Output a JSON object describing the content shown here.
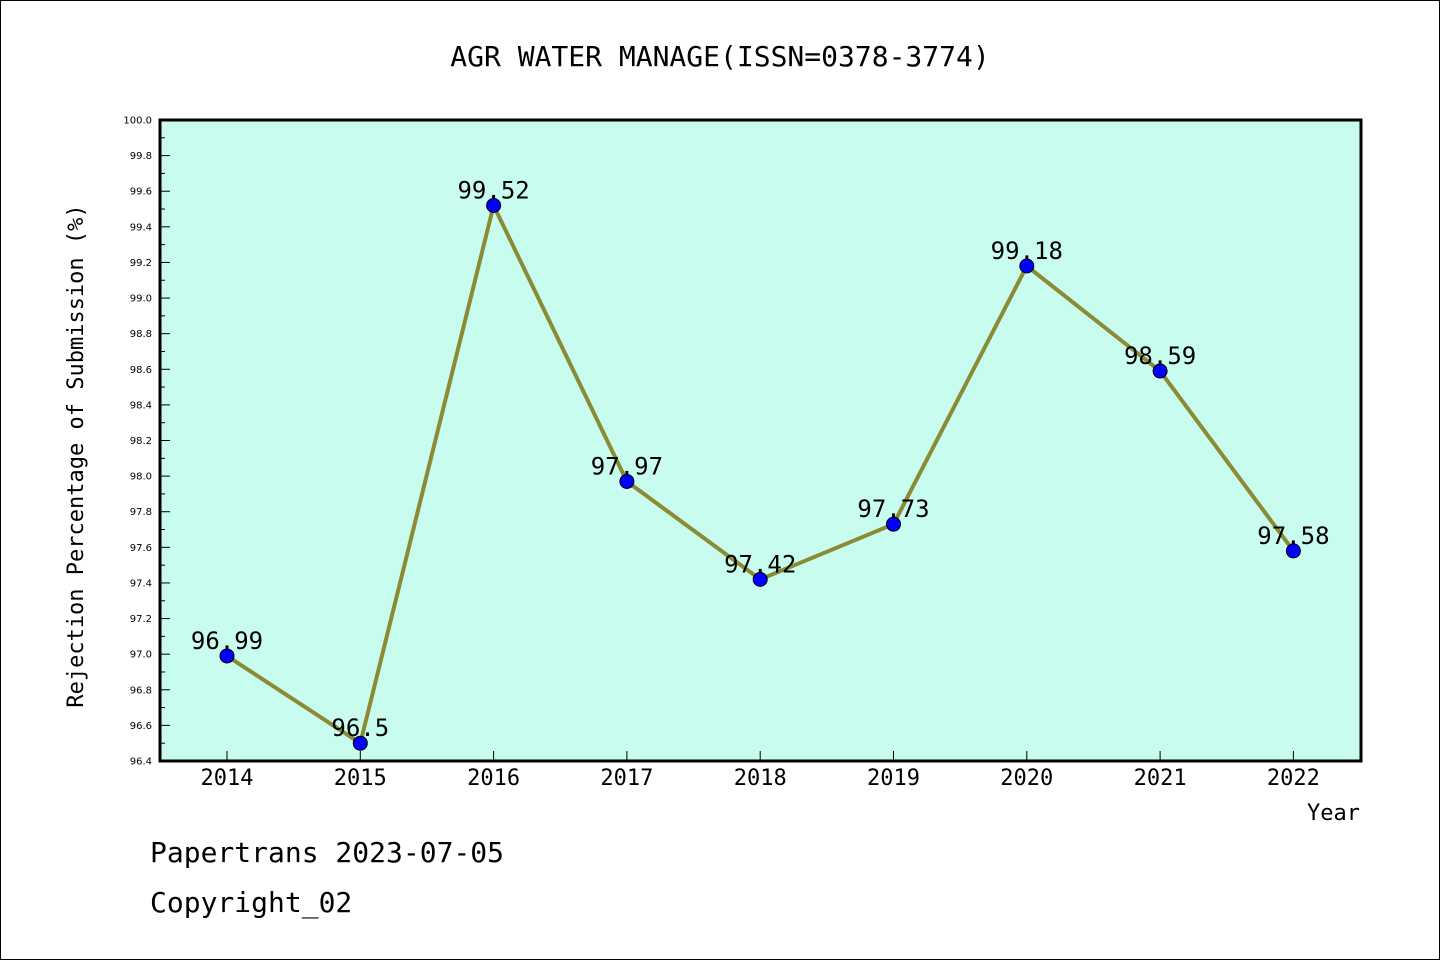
{
  "chart_data": {
    "type": "line",
    "title": "AGR WATER MANAGE(ISSN=0378-3774)",
    "xlabel": "Year",
    "ylabel": "Rejection Percentage of Submission (%)",
    "categories": [
      "2014",
      "2015",
      "2016",
      "2017",
      "2018",
      "2019",
      "2020",
      "2021",
      "2022"
    ],
    "values": [
      96.99,
      96.5,
      99.52,
      97.97,
      97.42,
      97.73,
      99.18,
      98.59,
      97.58
    ],
    "data_labels": [
      "96.99",
      "96.5",
      "99.52",
      "97.97",
      "97.42",
      "97.73",
      "99.18",
      "98.59",
      "97.58"
    ],
    "ylim": [
      96.4,
      100.0
    ],
    "yticks": [
      "96.4",
      "96.6",
      "96.8",
      "97.0",
      "97.2",
      "97.4",
      "97.6",
      "97.8",
      "98.0",
      "98.2",
      "98.4",
      "98.6",
      "98.8",
      "99.0",
      "99.2",
      "99.4",
      "99.6",
      "99.8",
      "100.0"
    ],
    "grid": false,
    "colors": {
      "plot_background": "#c8fcee",
      "line": "#8b8a35",
      "marker": "#0000ff"
    }
  },
  "footer": {
    "line1": "Papertrans 2023-07-05",
    "line2": "Copyright_02"
  }
}
